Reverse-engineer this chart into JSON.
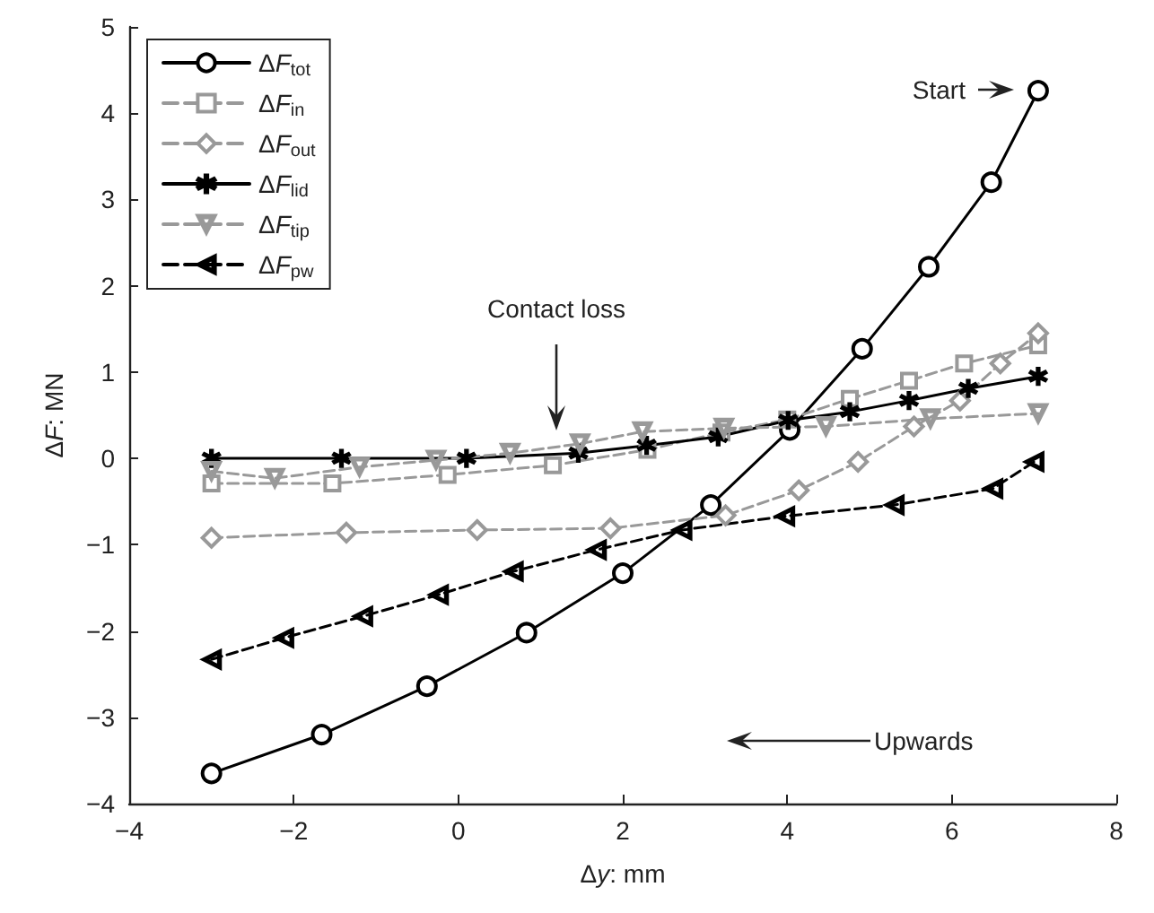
{
  "chart_data": {
    "type": "line",
    "xlabel": "Δy: mm",
    "ylabel": "ΔF: MN",
    "xlim": [
      -4,
      8
    ],
    "xticks": [
      -4,
      -2,
      0,
      2,
      4,
      6,
      8
    ],
    "ylim": [
      -4,
      5
    ],
    "yticks": [
      -4,
      -3,
      -2,
      -1,
      0,
      1,
      2,
      3,
      4,
      5
    ],
    "grid": false,
    "legend": "top left",
    "annotations": [
      "Start",
      "Contact loss",
      "Upwards"
    ],
    "series": [
      {
        "name": "ΔF$_{tot}$",
        "color": "#000000",
        "marker": "circle",
        "line_style": "solid",
        "x": [
          -3,
          -1.66,
          -0.38,
          0.83,
          2.0,
          3.07,
          4.03,
          4.91,
          5.72,
          6.48,
          7.05
        ],
        "values": [
          -3.65,
          -3.2,
          -2.64,
          -2.02,
          -1.33,
          -0.54,
          0.33,
          1.27,
          2.22,
          3.2,
          4.26
        ]
      },
      {
        "name": "ΔF$_{in}$",
        "color": "#999999",
        "marker": "square",
        "line_style": "dashed",
        "x": [
          -3,
          -1.53,
          -0.13,
          1.15,
          2.3,
          3.2,
          4.0,
          4.76,
          5.48,
          6.15,
          7.05
        ],
        "values": [
          -0.29,
          -0.29,
          -0.19,
          -0.08,
          0.1,
          0.3,
          0.45,
          0.69,
          0.9,
          1.1,
          1.31
        ]
      },
      {
        "name": "ΔF$_{out}$",
        "color": "#999999",
        "marker": "diamond",
        "line_style": "dashed",
        "x": [
          -3,
          -1.36,
          0.23,
          1.85,
          3.25,
          4.14,
          4.86,
          5.54,
          6.1,
          6.59,
          7.05
        ],
        "values": [
          -0.92,
          -0.86,
          -0.83,
          -0.81,
          -0.66,
          -0.37,
          -0.04,
          0.37,
          0.67,
          1.1,
          1.45
        ]
      },
      {
        "name": "ΔF$_{lid}$",
        "color": "#000000",
        "marker": "star",
        "line_style": "solid",
        "x": [
          -3,
          -1.42,
          0.1,
          1.46,
          2.29,
          3.16,
          4.01,
          4.76,
          5.48,
          6.2,
          7.05
        ],
        "values": [
          0,
          0,
          0,
          0.06,
          0.15,
          0.25,
          0.44,
          0.54,
          0.67,
          0.81,
          0.95
        ]
      },
      {
        "name": "ΔF$_{tip}$",
        "color": "#999999",
        "marker": "triangle-down",
        "line_style": "dashed",
        "x": [
          -3,
          -2.23,
          -1.2,
          -0.27,
          0.63,
          1.48,
          2.24,
          3.23,
          4.47,
          5.74,
          7.05
        ],
        "values": [
          -0.15,
          -0.23,
          -0.1,
          -0.02,
          0.06,
          0.17,
          0.31,
          0.35,
          0.37,
          0.46,
          0.52
        ]
      },
      {
        "name": "ΔF$_{pw}$",
        "color": "#000000",
        "marker": "triangle-left",
        "line_style": "dashed",
        "x": [
          -3,
          -2.12,
          -1.16,
          -0.24,
          0.67,
          1.68,
          2.72,
          3.97,
          5.3,
          6.5,
          7.0
        ],
        "values": [
          -2.33,
          -2.08,
          -1.83,
          -1.58,
          -1.31,
          -1.06,
          -0.83,
          -0.67,
          -0.54,
          -0.35,
          -0.04
        ]
      }
    ]
  }
}
